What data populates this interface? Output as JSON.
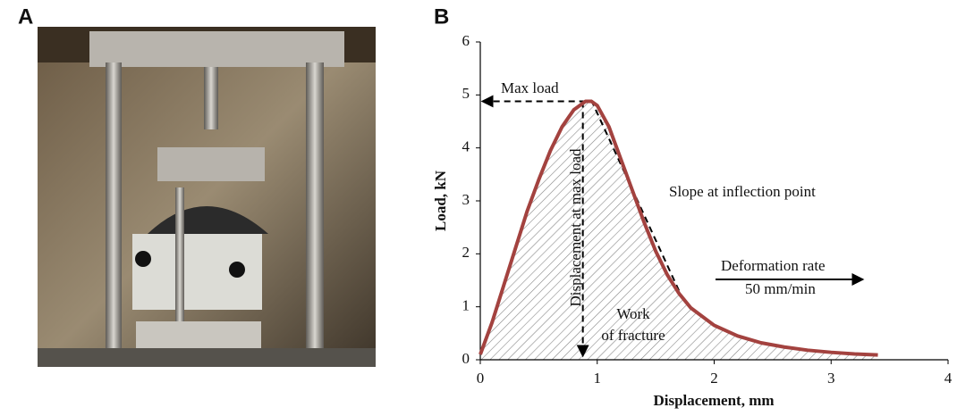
{
  "panel_labels": [
    "A",
    "B"
  ],
  "chart_data": {
    "type": "line",
    "xlabel": "Displacement, mm",
    "ylabel": "Load, kN",
    "x": [
      0,
      0.1,
      0.2,
      0.3,
      0.4,
      0.5,
      0.6,
      0.7,
      0.8,
      0.9,
      0.95,
      1.0,
      1.1,
      1.2,
      1.3,
      1.4,
      1.5,
      1.6,
      1.7,
      1.8,
      2.0,
      2.2,
      2.4,
      2.6,
      2.8,
      3.0,
      3.2,
      3.4
    ],
    "series": [
      {
        "color": "#a3423f",
        "values": [
          0.1,
          0.7,
          1.4,
          2.1,
          2.8,
          3.4,
          3.95,
          4.4,
          4.72,
          4.88,
          4.88,
          4.8,
          4.4,
          3.8,
          3.2,
          2.6,
          2.05,
          1.6,
          1.25,
          0.98,
          0.65,
          0.45,
          0.32,
          0.24,
          0.18,
          0.14,
          0.11,
          0.09
        ]
      }
    ],
    "xlim": [
      0,
      4
    ],
    "xticks": [
      0,
      1,
      2,
      3,
      4
    ],
    "ylim": [
      0,
      6
    ],
    "yticks": [
      0,
      1,
      2,
      3,
      4,
      5,
      6
    ],
    "annotations": [
      "Max load",
      "Slope at inflection point",
      "Deformation  rate",
      "50 mm/min",
      "Displacement at max load",
      "Work",
      "of fracture"
    ]
  }
}
